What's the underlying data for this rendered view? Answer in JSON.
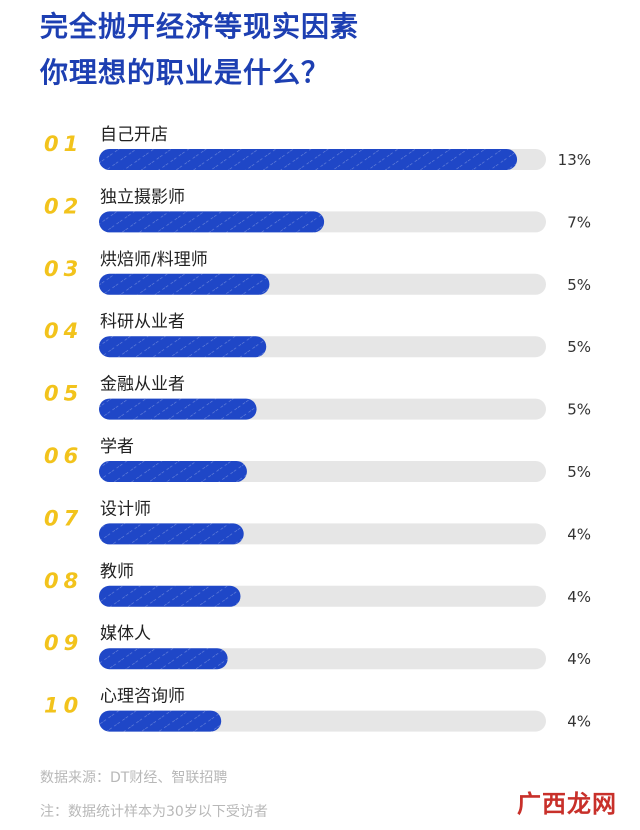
{
  "title_lines": [
    "完全抛开经济等现实因素",
    "你理想的职业是什么？"
  ],
  "chart_data": {
    "type": "bar",
    "orientation": "horizontal",
    "title": "完全抛开经济等现实因素 你理想的职业是什么？",
    "ranks": [
      "01",
      "02",
      "03",
      "04",
      "05",
      "06",
      "07",
      "08",
      "09",
      "10"
    ],
    "categories": [
      "自己开店",
      "独立摄影师",
      "烘焙师/料理师",
      "科研从业者",
      "金融从业者",
      "学者",
      "设计师",
      "教师",
      "媒体人",
      "心理咨询师"
    ],
    "values": [
      13.0,
      7.0,
      5.3,
      5.2,
      4.9,
      4.6,
      4.5,
      4.4,
      4.0,
      3.8
    ],
    "value_labels": [
      "13%",
      "7%",
      "5%",
      "5%",
      "5%",
      "5%",
      "4%",
      "4%",
      "4%",
      "4%"
    ],
    "xlim": [
      0,
      13.9
    ],
    "bar_color": "#1f47c7",
    "track_color": "#e6e6e6",
    "rank_color": "#f2c31c"
  },
  "footer": {
    "source": "数据来源：DT财经、智联招聘",
    "note": "注：数据统计样本为30岁以下受访者"
  },
  "watermark": "广西龙网",
  "colors": {
    "title": "#1d3fb2",
    "footer": "#b8b8b8",
    "watermark": "#c8302a"
  }
}
